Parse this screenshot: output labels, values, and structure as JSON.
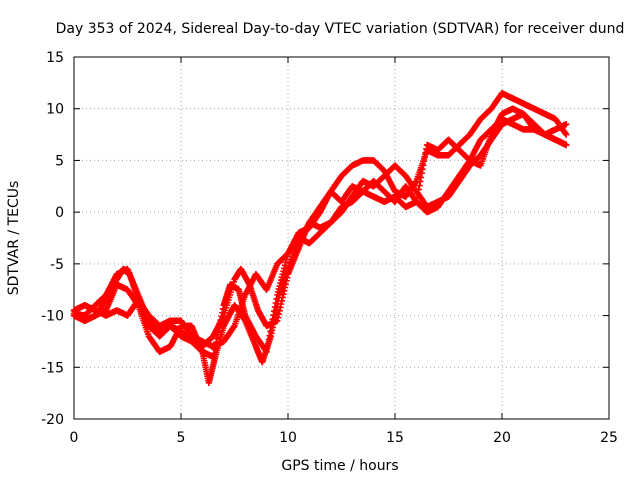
{
  "chart_data": {
    "type": "scatter",
    "title": "Day 353 of 2024, Sidereal Day-to-day VTEC variation (SDTVAR) for receiver dund",
    "xlabel": "GPS time / hours",
    "ylabel": "SDTVAR / TECUs",
    "xlim": [
      0,
      25
    ],
    "ylim": [
      -20,
      15
    ],
    "xticks": [
      "0",
      "5",
      "10",
      "15",
      "20",
      "25"
    ],
    "yticks": [
      "-20",
      "-15",
      "-10",
      "-5",
      "0",
      "5",
      "10",
      "15"
    ],
    "grid": true,
    "legend": "none",
    "marker": "+",
    "series_color": "#ff0000",
    "series": [
      {
        "x": [
          0.0,
          0.5,
          1.0,
          1.5,
          2.0,
          2.3,
          2.6,
          3.0,
          3.5,
          4.0,
          4.5,
          5.0,
          5.5,
          6.0,
          6.5,
          7.0,
          7.3,
          7.7,
          8.0,
          8.5,
          9.0,
          9.5,
          10.0,
          10.5,
          11.0,
          11.5,
          12.0,
          12.5,
          13.0,
          13.5,
          14.0,
          14.5,
          15.0,
          15.5,
          16.0,
          16.5,
          17.0,
          17.5,
          18.0,
          18.5,
          19.0,
          19.5,
          20.0,
          20.5,
          21.0,
          21.5,
          22.0,
          22.5,
          23.0
        ],
        "y": [
          -9.5,
          -10.5,
          -10.0,
          -8.5,
          -6.5,
          -5.5,
          -6.0,
          -8.5,
          -11.0,
          -12.0,
          -11.0,
          -12.0,
          -12.5,
          -13.5,
          -14.0,
          -9.0,
          -7.0,
          -7.5,
          -10.0,
          -12.0,
          -13.5,
          -8.0,
          -4.0,
          -2.0,
          -1.5,
          0.0,
          2.0,
          1.0,
          2.5,
          2.0,
          3.0,
          2.0,
          1.0,
          2.5,
          1.0,
          0.0,
          0.5,
          2.0,
          3.5,
          5.0,
          7.0,
          8.0,
          9.0,
          8.5,
          8.0,
          8.0,
          7.5,
          7.0,
          6.5
        ]
      },
      {
        "x": [
          0.0,
          0.5,
          1.0,
          1.5,
          2.0,
          2.5,
          3.0,
          3.5,
          4.0,
          4.5,
          5.0,
          5.5,
          6.0,
          6.5,
          7.0,
          7.5,
          7.8,
          8.2,
          8.6,
          9.0,
          9.5,
          10.0,
          10.5,
          11.0,
          11.5,
          12.0,
          12.5,
          13.0,
          13.5,
          14.0,
          14.5,
          15.0,
          15.5,
          16.0,
          16.5,
          17.0,
          17.5,
          18.0,
          18.5,
          19.0,
          19.5,
          20.0,
          20.5,
          21.0,
          21.5,
          22.0,
          22.5,
          23.0
        ],
        "y": [
          -9.8,
          -10.0,
          -9.0,
          -8.0,
          -6.0,
          -5.5,
          -8.0,
          -10.5,
          -11.5,
          -11.0,
          -11.5,
          -12.5,
          -13.0,
          -12.0,
          -10.0,
          -6.5,
          -5.5,
          -7.0,
          -9.5,
          -11.0,
          -10.5,
          -6.0,
          -3.5,
          -1.0,
          0.5,
          2.0,
          3.5,
          4.5,
          5.0,
          5.0,
          4.0,
          2.0,
          1.5,
          3.0,
          6.0,
          5.5,
          5.5,
          6.5,
          7.5,
          9.0,
          10.0,
          11.5,
          11.0,
          10.5,
          10.0,
          9.5,
          9.0,
          7.5
        ]
      },
      {
        "x": [
          0.0,
          0.5,
          1.0,
          1.5,
          2.0,
          2.5,
          3.0,
          3.5,
          4.0,
          4.5,
          5.0,
          5.5,
          6.0,
          6.3,
          6.6,
          7.0,
          7.5,
          8.0,
          8.5,
          8.8,
          9.2,
          9.6,
          10.0,
          10.5,
          11.0,
          11.5,
          12.0,
          12.5,
          13.0,
          13.5,
          14.0,
          14.5,
          15.0,
          15.5,
          16.0,
          16.5,
          17.0,
          17.5,
          18.0,
          18.5,
          19.0,
          19.5,
          20.0,
          20.5,
          21.0,
          21.5,
          22.0,
          22.5,
          23.0
        ],
        "y": [
          -10.0,
          -10.5,
          -10.0,
          -9.5,
          -7.0,
          -7.5,
          -9.0,
          -12.0,
          -13.5,
          -13.0,
          -11.0,
          -11.0,
          -13.5,
          -16.5,
          -14.0,
          -11.0,
          -9.0,
          -10.5,
          -13.0,
          -14.5,
          -12.0,
          -8.0,
          -5.5,
          -3.0,
          -1.0,
          -1.5,
          -1.0,
          0.0,
          1.5,
          3.0,
          2.5,
          3.5,
          4.5,
          3.5,
          2.0,
          0.5,
          1.0,
          1.5,
          3.0,
          4.5,
          5.5,
          7.0,
          8.5,
          9.0,
          9.5,
          8.0,
          7.5,
          8.0,
          8.5
        ]
      },
      {
        "x": [
          0.0,
          0.5,
          1.0,
          1.5,
          2.0,
          2.5,
          3.0,
          3.5,
          4.0,
          4.5,
          5.0,
          5.5,
          6.0,
          6.5,
          7.0,
          7.5,
          8.0,
          8.5,
          9.0,
          9.5,
          10.0,
          10.5,
          11.0,
          11.5,
          12.0,
          12.5,
          13.0,
          13.5,
          14.0,
          14.5,
          15.0,
          15.5,
          16.0,
          16.5,
          17.0,
          17.5,
          18.0,
          18.5,
          19.0,
          19.5,
          20.0,
          20.5,
          21.0,
          21.5,
          22.0,
          22.5,
          23.0
        ],
        "y": [
          -9.5,
          -9.0,
          -9.5,
          -10.0,
          -9.5,
          -10.0,
          -8.5,
          -10.0,
          -11.0,
          -10.5,
          -10.5,
          -12.0,
          -12.5,
          -13.0,
          -12.5,
          -11.0,
          -8.0,
          -6.0,
          -7.5,
          -5.0,
          -4.0,
          -2.5,
          -3.0,
          -2.0,
          -1.0,
          0.5,
          1.0,
          2.0,
          1.5,
          1.0,
          1.5,
          0.5,
          1.0,
          6.5,
          6.0,
          7.0,
          6.0,
          5.0,
          4.5,
          7.5,
          9.5,
          10.0,
          9.5,
          8.5,
          7.5,
          7.0,
          6.5
        ]
      }
    ]
  }
}
